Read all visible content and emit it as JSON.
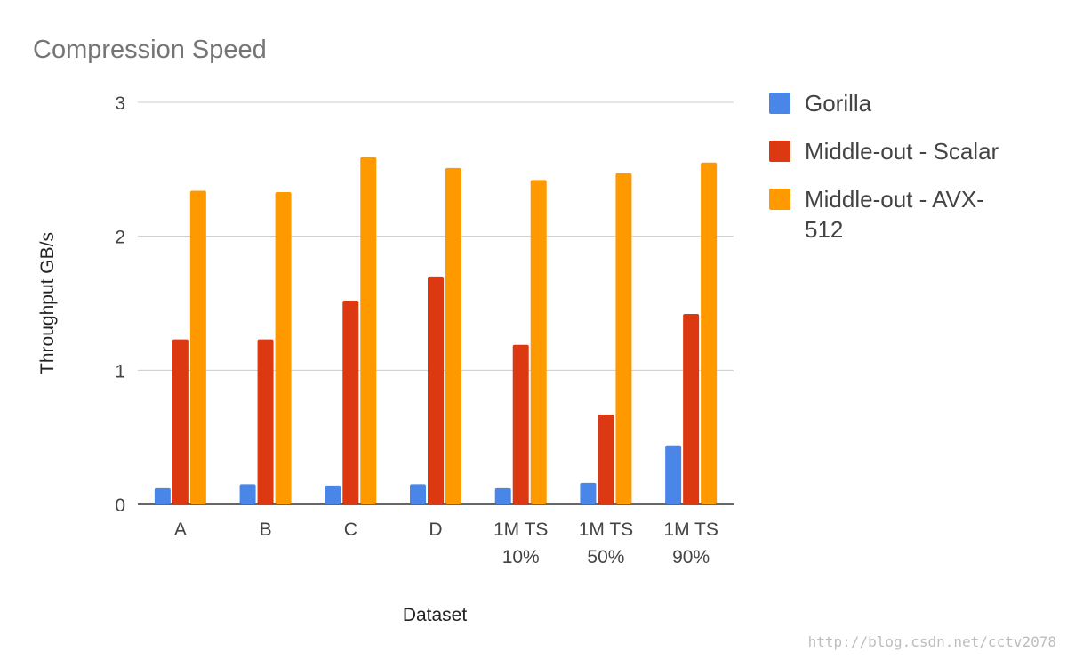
{
  "chart_data": {
    "type": "bar",
    "title": "Compression Speed",
    "xlabel": "Dataset",
    "ylabel": "Throughput GB/s",
    "ylim": [
      0,
      3
    ],
    "yticks": [
      0,
      1,
      2,
      3
    ],
    "grid": true,
    "legend_position": "right",
    "categories": [
      [
        "A"
      ],
      [
        "B"
      ],
      [
        "C"
      ],
      [
        "D"
      ],
      [
        "1M TS",
        "10%"
      ],
      [
        "1M TS",
        "50%"
      ],
      [
        "1M TS",
        "90%"
      ]
    ],
    "series": [
      {
        "name": "Gorilla",
        "color": "#4a86e8",
        "values": [
          0.12,
          0.15,
          0.14,
          0.15,
          0.12,
          0.16,
          0.44
        ]
      },
      {
        "name": "Middle-out - Scalar",
        "color": "#dc3912",
        "values": [
          1.23,
          1.23,
          1.52,
          1.7,
          1.19,
          0.67,
          1.42
        ]
      },
      {
        "name": "Middle-out - AVX-512",
        "color": "#ff9900",
        "legend_lines": [
          "Middle-out - AVX-",
          "512"
        ],
        "values": [
          2.34,
          2.33,
          2.59,
          2.51,
          2.42,
          2.47,
          2.55
        ]
      }
    ]
  },
  "watermark": "http://blog.csdn.net/cctv2078"
}
